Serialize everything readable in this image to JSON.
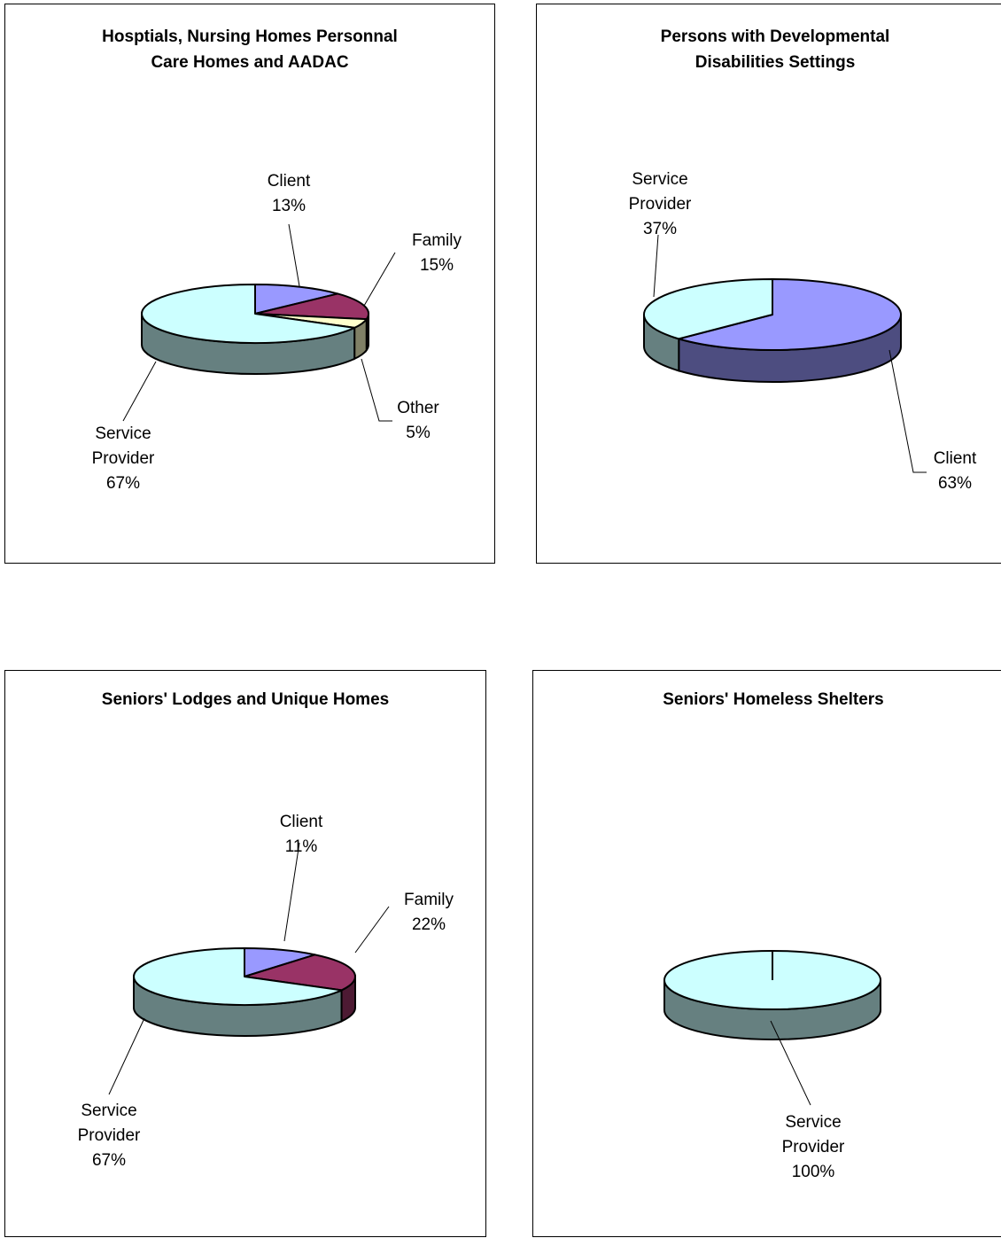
{
  "chart_data": [
    {
      "type": "pie",
      "title": "Hosptials, Nursing Homes Personnal Care Homes and AADAC",
      "title_lines": [
        "Hosptials, Nursing Homes Personnal",
        "Care Homes and AADAC"
      ],
      "slices": [
        {
          "label": "Client",
          "value": 13,
          "pct": "13%",
          "color": "#9999ff"
        },
        {
          "label": "Family",
          "value": 15,
          "pct": "15%",
          "color": "#993366"
        },
        {
          "label": "Other",
          "value": 5,
          "pct": "5%",
          "color": "#ffffcc"
        },
        {
          "label": "Service Provider",
          "value": 67,
          "pct": "67%",
          "color": "#ccffff"
        }
      ]
    },
    {
      "type": "pie",
      "title": "Persons with Developmental Disabilities Settings",
      "title_lines": [
        "Persons with Developmental",
        "Disabilities Settings"
      ],
      "slices": [
        {
          "label": "Client",
          "value": 63,
          "pct": "63%",
          "color": "#9999ff"
        },
        {
          "label": "Service Provider",
          "value": 37,
          "pct": "37%",
          "color": "#ccffff"
        }
      ]
    },
    {
      "type": "pie",
      "title": "Seniors' Lodges and Unique Homes",
      "title_lines": [
        "Seniors' Lodges and Unique Homes"
      ],
      "slices": [
        {
          "label": "Client",
          "value": 11,
          "pct": "11%",
          "color": "#9999ff"
        },
        {
          "label": "Family",
          "value": 22,
          "pct": "22%",
          "color": "#993366"
        },
        {
          "label": "Service Provider",
          "value": 67,
          "pct": "67%",
          "color": "#ccffff"
        }
      ]
    },
    {
      "type": "pie",
      "title": "Seniors' Homeless Shelters",
      "title_lines": [
        "Seniors' Homeless Shelters"
      ],
      "slices": [
        {
          "label": "Service Provider",
          "value": 100,
          "pct": "100%",
          "color": "#ccffff"
        }
      ]
    }
  ]
}
